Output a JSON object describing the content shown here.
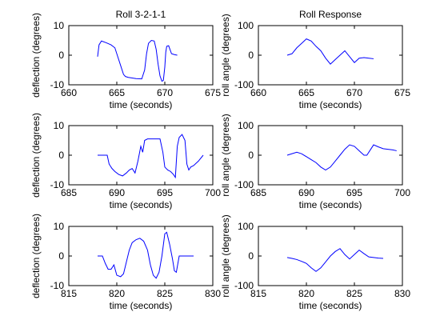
{
  "chart_data": [
    {
      "type": "line",
      "title": "Roll 3-2-1-1",
      "xlabel": "time (seconds)",
      "ylabel": "deflection (degrees)",
      "xlim": [
        660,
        675
      ],
      "ylim": [
        -10,
        10
      ],
      "xticks": [
        660,
        665,
        670,
        675
      ],
      "yticks": [
        -10,
        0,
        10
      ],
      "grid": false,
      "color": "#0000ff",
      "x": [
        663.0,
        663.15,
        663.4,
        663.9,
        664.4,
        664.8,
        665.1,
        665.4,
        665.7,
        665.9,
        666.2,
        667.0,
        667.6,
        667.9,
        668.1,
        668.3,
        668.6,
        668.9,
        669.1,
        669.3,
        669.5,
        669.7,
        669.85,
        670.0,
        670.1,
        670.2,
        670.4,
        670.7,
        671.0,
        671.3
      ],
      "y": [
        -0.5,
        3.5,
        4.8,
        4.2,
        3.5,
        2.5,
        -0.5,
        -3.5,
        -6.5,
        -7.2,
        -7.5,
        -7.9,
        -8.0,
        -5.0,
        0.5,
        4.0,
        5.0,
        4.8,
        2.0,
        -3.0,
        -7.0,
        -8.8,
        -8.5,
        -4.0,
        1.0,
        3.0,
        3.2,
        0.5,
        0.2,
        0.0
      ]
    },
    {
      "type": "line",
      "title": "Roll Response",
      "xlabel": "time (seconds)",
      "ylabel": "roll angle (degrees)",
      "xlim": [
        660,
        675
      ],
      "ylim": [
        -100,
        100
      ],
      "xticks": [
        660,
        665,
        670,
        675
      ],
      "yticks": [
        -100,
        0,
        100
      ],
      "grid": false,
      "color": "#0000ff",
      "x": [
        663.0,
        663.5,
        664.0,
        664.5,
        665.0,
        665.5,
        666.0,
        666.5,
        667.0,
        667.5,
        668.0,
        668.5,
        669.0,
        669.5,
        670.0,
        670.5,
        671.0,
        671.5,
        672.0
      ],
      "y": [
        0,
        5,
        25,
        40,
        55,
        48,
        30,
        15,
        -10,
        -30,
        -15,
        0,
        15,
        -5,
        -25,
        -10,
        -8,
        -10,
        -12
      ]
    },
    {
      "type": "line",
      "title": "",
      "xlabel": "time (seconds)",
      "ylabel": "deflection (degrees)",
      "xlim": [
        685,
        700
      ],
      "ylim": [
        -10,
        10
      ],
      "xticks": [
        685,
        690,
        695,
        700
      ],
      "yticks": [
        -10,
        0,
        10
      ],
      "grid": false,
      "color": "#0000ff",
      "x": [
        688.0,
        689.0,
        689.2,
        689.5,
        689.8,
        690.2,
        690.6,
        691.0,
        691.3,
        691.6,
        691.9,
        692.2,
        692.5,
        692.7,
        692.9,
        693.2,
        694.0,
        694.5,
        694.8,
        695.0,
        695.3,
        695.6,
        695.9,
        696.1,
        696.3,
        696.5,
        696.8,
        697.1,
        697.3,
        697.5,
        697.7,
        698.0,
        698.5,
        699.0
      ],
      "y": [
        0,
        0,
        -3.0,
        -4.5,
        -5.5,
        -6.5,
        -7.0,
        -6.0,
        -5.0,
        -4.5,
        -6.0,
        -2.0,
        3.0,
        1.0,
        5.0,
        5.5,
        5.5,
        5.5,
        1.0,
        -4.0,
        -5.0,
        -5.5,
        -6.5,
        -7.5,
        3.0,
        6.0,
        7.0,
        5.0,
        -3.0,
        -5.0,
        -4.0,
        -3.5,
        -2.0,
        0.0
      ]
    },
    {
      "type": "line",
      "title": "",
      "xlabel": "time (seconds)",
      "ylabel": "roll angle (degrees)",
      "xlim": [
        685,
        700
      ],
      "ylim": [
        -100,
        100
      ],
      "xticks": [
        685,
        690,
        695,
        700
      ],
      "yticks": [
        -100,
        0,
        100
      ],
      "grid": false,
      "color": "#0000ff",
      "x": [
        688.0,
        688.5,
        689.0,
        689.5,
        690.0,
        690.5,
        691.0,
        691.5,
        692.0,
        692.5,
        693.0,
        693.5,
        694.0,
        694.5,
        695.0,
        695.5,
        696.0,
        696.3,
        696.6,
        697.0,
        697.5,
        698.0,
        698.5,
        699.0,
        699.4
      ],
      "y": [
        0,
        5,
        10,
        5,
        -5,
        -15,
        -25,
        -40,
        -50,
        -40,
        -20,
        0,
        20,
        35,
        30,
        15,
        0,
        0,
        15,
        35,
        28,
        22,
        20,
        18,
        15
      ]
    },
    {
      "type": "line",
      "title": "",
      "xlabel": "time (seconds)",
      "ylabel": "deflection (degrees)",
      "xlim": [
        815,
        830
      ],
      "ylim": [
        -10,
        10
      ],
      "xticks": [
        815,
        820,
        825,
        830
      ],
      "yticks": [
        -10,
        0,
        10
      ],
      "grid": false,
      "color": "#0000ff",
      "x": [
        818.0,
        818.5,
        818.8,
        819.1,
        819.4,
        819.7,
        820.0,
        820.4,
        820.7,
        821.0,
        821.3,
        821.6,
        822.0,
        822.4,
        822.8,
        823.2,
        823.5,
        823.8,
        824.1,
        824.4,
        824.7,
        825.0,
        825.2,
        825.5,
        825.8,
        826.0,
        826.2,
        826.5,
        827.0,
        827.5,
        828.0
      ],
      "y": [
        0,
        0,
        -2.5,
        -4.5,
        -4.5,
        -3.0,
        -6.5,
        -7.0,
        -6.0,
        -2.0,
        2.0,
        4.5,
        5.5,
        6.0,
        5.0,
        2.0,
        -3.0,
        -6.5,
        -7.5,
        -5.5,
        0.0,
        7.5,
        8.0,
        4.0,
        -1.0,
        -5.0,
        -5.5,
        0,
        0,
        0,
        0
      ]
    },
    {
      "type": "line",
      "title": "",
      "xlabel": "time (seconds)",
      "ylabel": "roll angle (degrees)",
      "xlim": [
        815,
        830
      ],
      "ylim": [
        -100,
        100
      ],
      "xticks": [
        815,
        820,
        825,
        830
      ],
      "yticks": [
        -100,
        0,
        100
      ],
      "grid": false,
      "color": "#0000ff",
      "x": [
        818.0,
        818.5,
        819.0,
        819.5,
        820.0,
        820.5,
        821.0,
        821.5,
        822.0,
        822.5,
        823.0,
        823.5,
        824.0,
        824.5,
        825.0,
        825.5,
        826.0,
        826.5,
        827.0,
        827.5,
        828.0
      ],
      "y": [
        -5,
        -8,
        -12,
        -18,
        -25,
        -40,
        -52,
        -40,
        -20,
        0,
        15,
        25,
        5,
        -10,
        5,
        20,
        8,
        -3,
        -5,
        -7,
        -8
      ]
    }
  ]
}
